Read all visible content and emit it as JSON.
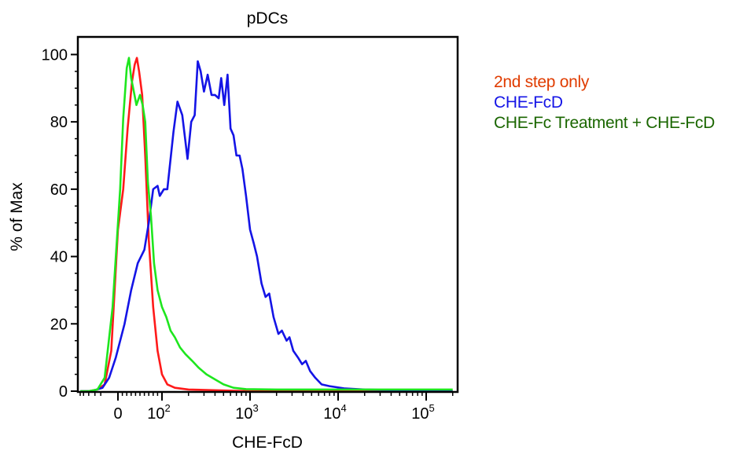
{
  "chart_data": {
    "type": "line",
    "title": "pDCs",
    "xlabel": "CHE-FcD",
    "ylabel": "% of Max",
    "x_scale": "biexponential",
    "xlim": [
      -1000,
      200000
    ],
    "ylim": [
      0,
      105
    ],
    "x_ticks": [
      {
        "value": 0,
        "base": "0",
        "exp": ""
      },
      {
        "value": 100,
        "base": "10",
        "exp": "2"
      },
      {
        "value": 1000,
        "base": "10",
        "exp": "3"
      },
      {
        "value": 10000,
        "base": "10",
        "exp": "4"
      },
      {
        "value": 100000,
        "base": "10",
        "exp": "5"
      }
    ],
    "y_ticks": [
      "0",
      "20",
      "40",
      "60",
      "80",
      "100"
    ],
    "grid": false,
    "legend_position": "right",
    "series": [
      {
        "name": "2nd step only",
        "color": "#ff1a1a",
        "label_color": "#e03c00",
        "points": [
          [
            -1000,
            0
          ],
          [
            -400,
            0
          ],
          [
            -150,
            0.5
          ],
          [
            -60,
            2
          ],
          [
            -20,
            12
          ],
          [
            0,
            48
          ],
          [
            12,
            60
          ],
          [
            22,
            78
          ],
          [
            32,
            92
          ],
          [
            38,
            97
          ],
          [
            43,
            99
          ],
          [
            48,
            95
          ],
          [
            55,
            88
          ],
          [
            62,
            70
          ],
          [
            70,
            45
          ],
          [
            80,
            25
          ],
          [
            90,
            12
          ],
          [
            100,
            5
          ],
          [
            115,
            2
          ],
          [
            140,
            1
          ],
          [
            200,
            0.5
          ],
          [
            1000,
            0
          ],
          [
            200000,
            0
          ]
        ]
      },
      {
        "name": "CHE-FcD",
        "color": "#1414e6",
        "label_color": "#1414e6",
        "points": [
          [
            -1000,
            0
          ],
          [
            -300,
            0
          ],
          [
            -80,
            1
          ],
          [
            -30,
            4
          ],
          [
            -5,
            10
          ],
          [
            15,
            20
          ],
          [
            30,
            30
          ],
          [
            45,
            38
          ],
          [
            60,
            42
          ],
          [
            70,
            50
          ],
          [
            80,
            60
          ],
          [
            90,
            61
          ],
          [
            95,
            58
          ],
          [
            105,
            60
          ],
          [
            115,
            60
          ],
          [
            135,
            77
          ],
          [
            150,
            86
          ],
          [
            170,
            82
          ],
          [
            195,
            69
          ],
          [
            215,
            80
          ],
          [
            235,
            82
          ],
          [
            255,
            98
          ],
          [
            275,
            95
          ],
          [
            300,
            89
          ],
          [
            330,
            94
          ],
          [
            365,
            88
          ],
          [
            400,
            88
          ],
          [
            440,
            87
          ],
          [
            470,
            93
          ],
          [
            510,
            85
          ],
          [
            555,
            94
          ],
          [
            600,
            78
          ],
          [
            650,
            76
          ],
          [
            700,
            70
          ],
          [
            760,
            70
          ],
          [
            820,
            66
          ],
          [
            900,
            58
          ],
          [
            1000,
            48
          ],
          [
            1100,
            44
          ],
          [
            1200,
            40
          ],
          [
            1350,
            32
          ],
          [
            1500,
            28
          ],
          [
            1650,
            29
          ],
          [
            1850,
            22
          ],
          [
            2100,
            17
          ],
          [
            2300,
            18
          ],
          [
            2600,
            15
          ],
          [
            2800,
            16
          ],
          [
            3100,
            12
          ],
          [
            3500,
            10
          ],
          [
            3900,
            8
          ],
          [
            4300,
            9
          ],
          [
            4800,
            6
          ],
          [
            5500,
            4
          ],
          [
            6500,
            2
          ],
          [
            8000,
            1.5
          ],
          [
            12000,
            0.8
          ],
          [
            20000,
            0.5
          ],
          [
            40000,
            0.3
          ],
          [
            45000,
            0
          ],
          [
            200000,
            0
          ]
        ]
      },
      {
        "name": "CHE-Fc Treatment + CHE-FcD",
        "color": "#1ee61e",
        "label_color": "#1a6600",
        "points": [
          [
            -1000,
            0
          ],
          [
            -400,
            0
          ],
          [
            -150,
            0.5
          ],
          [
            -60,
            4
          ],
          [
            -15,
            25
          ],
          [
            5,
            60
          ],
          [
            12,
            81
          ],
          [
            20,
            96
          ],
          [
            25,
            99
          ],
          [
            30,
            93
          ],
          [
            36,
            89
          ],
          [
            42,
            85
          ],
          [
            50,
            88
          ],
          [
            56,
            85
          ],
          [
            62,
            80
          ],
          [
            68,
            62
          ],
          [
            75,
            52
          ],
          [
            82,
            38
          ],
          [
            90,
            30
          ],
          [
            100,
            25
          ],
          [
            112,
            22
          ],
          [
            125,
            18
          ],
          [
            140,
            16
          ],
          [
            160,
            13
          ],
          [
            185,
            11
          ],
          [
            220,
            9
          ],
          [
            260,
            7
          ],
          [
            320,
            5
          ],
          [
            400,
            3.5
          ],
          [
            500,
            2
          ],
          [
            650,
            1
          ],
          [
            900,
            0.6
          ],
          [
            2000,
            0.5
          ],
          [
            8000,
            0.5
          ],
          [
            200000,
            0.5
          ]
        ]
      }
    ]
  }
}
